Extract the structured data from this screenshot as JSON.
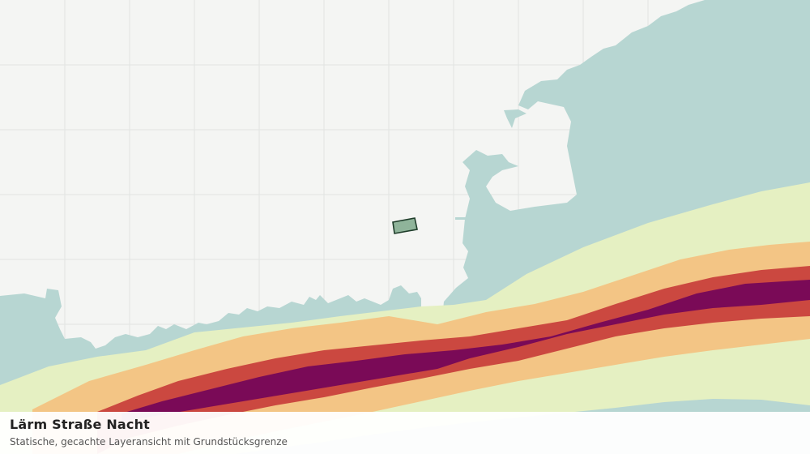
{
  "legend": {
    "title": "Lärm Straße Nacht",
    "subtitle": "Statische, gecachte Layeransicht mit Grundstücksgrenze"
  },
  "colors": {
    "background": "#f4f5f3",
    "grid": "#e2e3e1",
    "no_data_area": "#b7d6d2",
    "noise_band_1": "#e5f0c2",
    "noise_band_2": "#f3c585",
    "noise_band_3": "#cb4840",
    "noise_band_4": "#7a0a57",
    "parcel_fill": "#8fb49a",
    "parcel_border": "#1f3d2a"
  }
}
